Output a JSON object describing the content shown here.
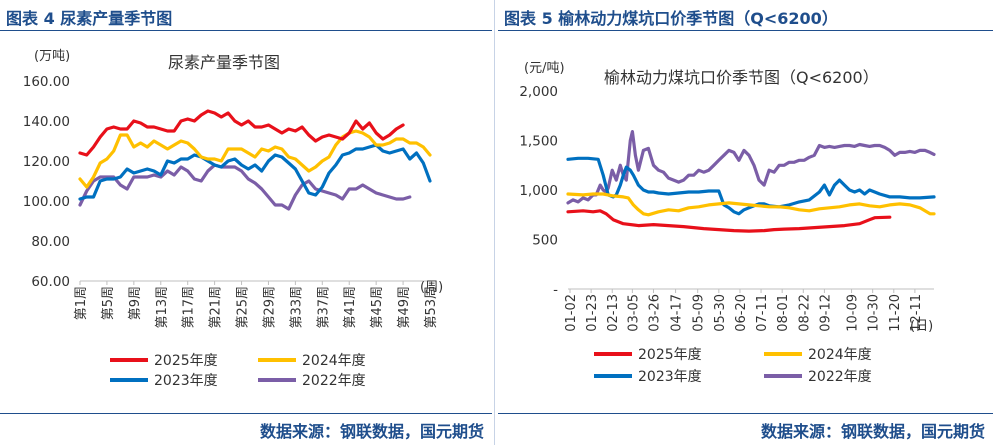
{
  "left": {
    "figure_title": "图表 4 尿素产量季节图",
    "source": "数据来源：钢联数据，国元期货"
  },
  "right": {
    "figure_title": "图表 5 榆林动力煤坑口价季节图（Q<6200）",
    "source": "数据来源：钢联数据，国元期货"
  },
  "chart_data": [
    {
      "type": "line",
      "title": "尿素产量季节图",
      "ylabel": "(万吨)",
      "xlabel": "(周)",
      "ylim": [
        60,
        160
      ],
      "yticks": [
        "60.00",
        "80.00",
        "100.00",
        "120.00",
        "140.00",
        "160.00"
      ],
      "ytick_values": [
        60,
        80,
        100,
        120,
        140,
        160
      ],
      "x_count": 53,
      "x_ticks": [
        "第1周",
        "第5周",
        "第9周",
        "第13周",
        "第17周",
        "第21周",
        "第25周",
        "第29周",
        "第33周",
        "第37周",
        "第41周",
        "第45周",
        "第49周",
        "第53周"
      ],
      "x_tick_positions": [
        1,
        5,
        9,
        13,
        17,
        21,
        25,
        29,
        33,
        37,
        41,
        45,
        49,
        53
      ],
      "series": [
        {
          "name": "2025年度",
          "color": "#e8101a",
          "values": [
            124,
            123,
            127,
            132,
            136,
            137,
            136,
            136,
            140,
            139,
            137,
            137,
            136,
            135,
            135,
            140,
            141,
            140,
            143,
            145,
            144,
            142,
            144,
            140,
            138,
            140,
            137,
            137,
            138,
            136,
            134,
            136,
            135,
            137,
            133,
            130,
            132,
            133,
            132,
            131,
            134,
            140,
            136,
            139,
            134,
            131,
            133,
            136,
            138
          ]
        },
        {
          "name": "2024年度",
          "color": "#ffc000",
          "values": [
            111,
            107,
            112,
            119,
            121,
            125,
            133,
            133,
            127,
            129,
            127,
            130,
            128,
            126,
            128,
            130,
            129,
            126,
            122,
            121,
            121,
            120,
            126,
            126,
            126,
            124,
            122,
            126,
            125,
            127,
            126,
            122,
            121,
            118,
            115,
            117,
            120,
            122,
            128,
            132,
            134,
            135,
            134,
            132,
            128,
            128,
            129,
            131,
            131,
            129,
            129,
            127,
            123
          ]
        },
        {
          "name": "2023年度",
          "color": "#0070c0",
          "values": [
            101,
            102,
            102,
            110,
            111,
            111,
            112,
            116,
            114,
            115,
            116,
            115,
            113,
            120,
            119,
            121,
            121,
            123,
            122,
            120,
            118,
            117,
            120,
            121,
            118,
            116,
            118,
            115,
            120,
            123,
            122,
            119,
            116,
            110,
            104,
            103,
            107,
            114,
            118,
            123,
            124,
            126,
            126,
            127,
            128,
            125,
            124,
            125,
            126,
            121,
            124,
            119,
            110
          ]
        },
        {
          "name": "2022年度",
          "color": "#7b5ea7",
          "values": [
            98,
            105,
            110,
            112,
            112,
            112,
            108,
            106,
            112,
            112,
            112,
            113,
            112,
            115,
            113,
            117,
            115,
            111,
            110,
            115,
            118,
            117,
            117,
            117,
            115,
            111,
            109,
            106,
            102,
            98,
            98,
            96,
            103,
            108,
            110,
            106,
            105,
            104,
            103,
            101,
            106,
            106,
            108,
            106,
            104,
            103,
            102,
            101,
            101,
            102
          ]
        }
      ],
      "legend": {
        "position": "bottom",
        "entries": [
          "2025年度",
          "2024年度",
          "2023年度",
          "2022年度"
        ]
      }
    },
    {
      "type": "line",
      "title": "榆林动力煤坑口价季节图（Q<6200）",
      "ylabel": "(元/吨)",
      "xlabel": "(日)",
      "ylim": [
        0,
        2000
      ],
      "yticks": [
        "-",
        "500",
        "1,000",
        "1,500",
        "2,000"
      ],
      "ytick_values": [
        0,
        500,
        1000,
        1500,
        2000
      ],
      "x_count": 365,
      "x_ticks": [
        "01-02",
        "01-23",
        "02-13",
        "03-05",
        "03-26",
        "04-17",
        "05-09",
        "05-30",
        "06-20",
        "07-11",
        "08-01",
        "08-22",
        "09-12",
        "10-09",
        "10-30",
        "11-20",
        "12-11"
      ],
      "x_tick_positions": [
        2,
        23,
        44,
        64,
        85,
        107,
        129,
        150,
        171,
        192,
        213,
        234,
        255,
        282,
        303,
        324,
        345
      ],
      "series": [
        {
          "name": "2025年度",
          "color": "#e8101a",
          "x": [
            0,
            15,
            25,
            32,
            38,
            45,
            55,
            70,
            85,
            100,
            115,
            125,
            135,
            150,
            165,
            180,
            195,
            205,
            215,
            230,
            245,
            260,
            275,
            290,
            295,
            300,
            305,
            320
          ],
          "values": [
            780,
            790,
            780,
            790,
            760,
            700,
            660,
            640,
            650,
            640,
            630,
            620,
            610,
            600,
            590,
            585,
            590,
            600,
            605,
            610,
            620,
            630,
            640,
            660,
            680,
            700,
            720,
            725
          ]
        },
        {
          "name": "2024年度",
          "color": "#ffc000",
          "x": [
            0,
            15,
            25,
            35,
            45,
            55,
            60,
            65,
            70,
            75,
            80,
            90,
            100,
            110,
            120,
            130,
            140,
            150,
            160,
            170,
            180,
            190,
            200,
            210,
            220,
            230,
            240,
            250,
            260,
            270,
            280,
            290,
            300,
            310,
            320,
            330,
            340,
            350,
            360,
            364
          ],
          "values": [
            960,
            950,
            960,
            960,
            940,
            930,
            920,
            850,
            800,
            760,
            750,
            780,
            800,
            790,
            820,
            830,
            850,
            860,
            870,
            860,
            850,
            840,
            830,
            830,
            820,
            800,
            790,
            810,
            820,
            830,
            850,
            860,
            840,
            830,
            850,
            860,
            850,
            820,
            760,
            760
          ]
        },
        {
          "name": "2023年度",
          "color": "#0070c0",
          "x": [
            0,
            10,
            20,
            30,
            35,
            40,
            45,
            48,
            52,
            55,
            58,
            62,
            65,
            70,
            75,
            80,
            85,
            90,
            100,
            110,
            120,
            130,
            140,
            150,
            155,
            160,
            165,
            170,
            175,
            180,
            185,
            190,
            195,
            200,
            210,
            220,
            230,
            240,
            250,
            255,
            260,
            265,
            270,
            275,
            280,
            285,
            290,
            295,
            300,
            305,
            310,
            320,
            330,
            340,
            350,
            364
          ],
          "values": [
            1310,
            1320,
            1320,
            1310,
            1150,
            950,
            930,
            950,
            1050,
            1150,
            1230,
            1200,
            1150,
            1050,
            1000,
            980,
            980,
            970,
            960,
            970,
            980,
            980,
            990,
            990,
            850,
            820,
            780,
            760,
            800,
            820,
            840,
            860,
            860,
            840,
            830,
            850,
            880,
            900,
            980,
            1050,
            950,
            1050,
            1100,
            1050,
            1000,
            980,
            1000,
            960,
            1000,
            980,
            960,
            930,
            930,
            920,
            920,
            930
          ]
        },
        {
          "name": "2022年度",
          "color": "#7b5ea7",
          "x": [
            0,
            5,
            10,
            15,
            20,
            25,
            28,
            32,
            35,
            38,
            40,
            44,
            48,
            52,
            55,
            58,
            62,
            64,
            67,
            70,
            75,
            80,
            85,
            90,
            95,
            100,
            105,
            110,
            115,
            120,
            125,
            130,
            135,
            140,
            145,
            150,
            155,
            160,
            165,
            170,
            175,
            180,
            185,
            190,
            195,
            200,
            205,
            210,
            215,
            220,
            225,
            230,
            235,
            240,
            245,
            250,
            255,
            260,
            265,
            270,
            275,
            280,
            285,
            290,
            295,
            300,
            305,
            310,
            315,
            320,
            325,
            330,
            335,
            340,
            345,
            350,
            355,
            360,
            364
          ],
          "values": [
            870,
            900,
            880,
            920,
            900,
            950,
            950,
            1050,
            1000,
            980,
            1020,
            1200,
            1100,
            1250,
            1150,
            1100,
            1500,
            1590,
            1350,
            1200,
            1400,
            1420,
            1250,
            1200,
            1180,
            1120,
            1100,
            1080,
            1100,
            1150,
            1150,
            1200,
            1180,
            1200,
            1250,
            1300,
            1350,
            1400,
            1380,
            1300,
            1400,
            1350,
            1250,
            1100,
            1050,
            1200,
            1180,
            1250,
            1250,
            1280,
            1280,
            1300,
            1300,
            1330,
            1350,
            1450,
            1430,
            1440,
            1430,
            1440,
            1450,
            1450,
            1440,
            1460,
            1450,
            1440,
            1450,
            1450,
            1430,
            1400,
            1350,
            1380,
            1380,
            1390,
            1380,
            1400,
            1400,
            1380,
            1360
          ]
        }
      ],
      "legend": {
        "position": "bottom",
        "entries": [
          "2025年度",
          "2024年度",
          "2023年度",
          "2022年度"
        ]
      }
    }
  ]
}
